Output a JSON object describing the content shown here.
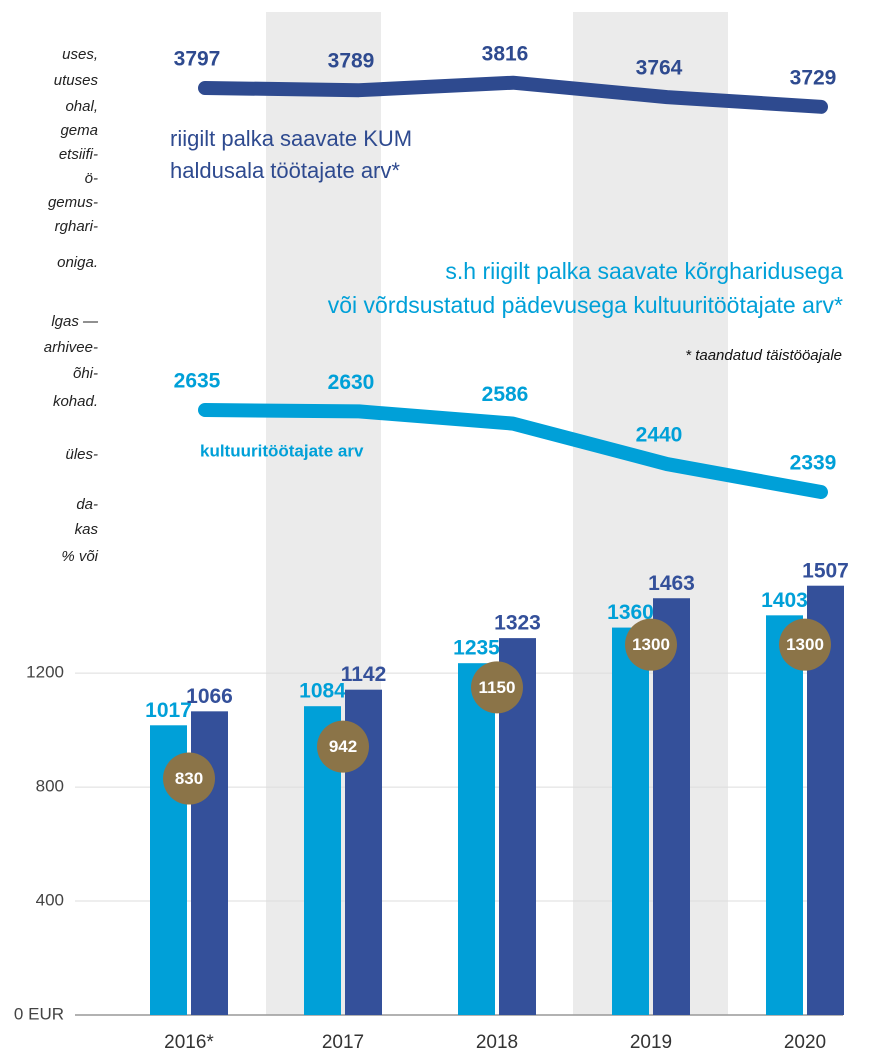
{
  "side_text": [
    "uses,",
    "utuses",
    "ohal,",
    "gema",
    "etsiifi-",
    "ö-",
    "gemus-",
    "rghari-",
    "oniga.",
    "lgas —",
    "arhivee-",
    "õhi-",
    "kohad.",
    "üles-",
    "da-",
    "kas",
    "% või"
  ],
  "chart_data": [
    {
      "type": "line",
      "ylim": [
        2000,
        4100
      ],
      "series": [
        {
          "color": "#2e4a8f",
          "values": [
            3797,
            3789,
            3816,
            3764,
            3729
          ],
          "label_lines": [
            "riigilt palka saavate KUM",
            "haldusala töötajate arv*"
          ]
        },
        {
          "color": "#00a0d8",
          "values": [
            2635,
            2630,
            2586,
            2440,
            2339
          ],
          "label_lines": [
            "kultuuritöötajate arv"
          ]
        }
      ],
      "note_lines": [
        "s.h riigilt palka saavate kõrgharidusega",
        "või võrdsustatud pädevusega kultuuritöötajate arv*"
      ],
      "footnote": "* taandatud täistööajale"
    },
    {
      "type": "bar",
      "categories": [
        "2016*",
        "2017",
        "2018",
        "2019",
        "2020"
      ],
      "series": [
        {
          "color": "#00a0d8",
          "values": [
            1017,
            1084,
            1235,
            1360,
            1403
          ]
        },
        {
          "color": "#34509a",
          "values": [
            1066,
            1142,
            1323,
            1463,
            1507
          ]
        }
      ],
      "markers": {
        "color": "#8b7448",
        "values": [
          830,
          942,
          1150,
          1300,
          1300
        ]
      },
      "ylim": [
        0,
        1520
      ],
      "yticks": [
        {
          "value": 0,
          "label": "0 EUR"
        },
        400,
        800,
        1200
      ],
      "grid": true
    }
  ]
}
